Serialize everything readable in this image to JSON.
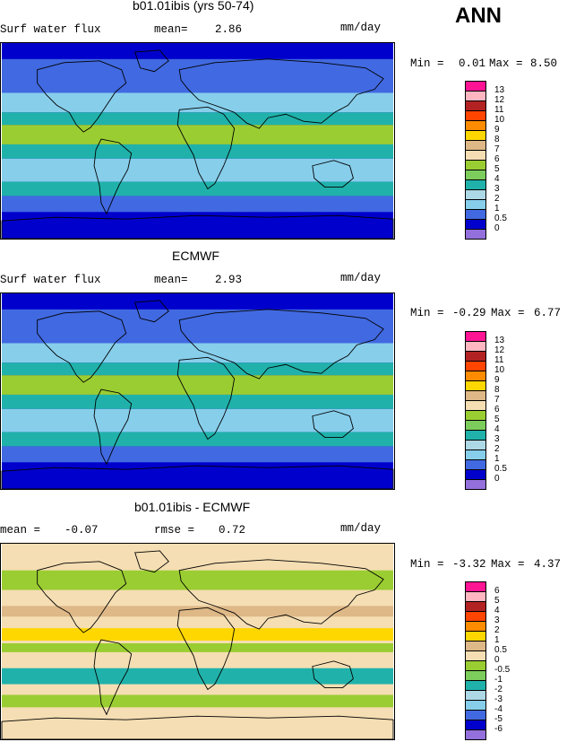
{
  "season_label": "ANN",
  "chart_data": [
    {
      "type": "heatmap",
      "title": "b01.01ibis (yrs 50-74)",
      "left_label": "Surf water flux",
      "stat1_label": "mean=",
      "stat1_value": "2.86",
      "stat2_label": "",
      "stat2_value": "",
      "units": "mm/day",
      "min_label": "Min =",
      "min_value": "0.01",
      "max_label": "Max =",
      "max_value": "8.50",
      "colorbar": {
        "levels": [
          "13",
          "12",
          "11",
          "10",
          "9",
          "8",
          "7",
          "6",
          "5",
          "4",
          "3",
          "2",
          "1",
          "0.5",
          "0"
        ],
        "colors": [
          "#ff1493",
          "#ffb6c1",
          "#b22222",
          "#ff4500",
          "#ff8c00",
          "#ffd700",
          "#deb887",
          "#f5deb3",
          "#9acd32",
          "#7ccd5c",
          "#20b2aa",
          "#add8e6",
          "#87ceeb",
          "#4169e1",
          "#0000cd",
          "#9370db"
        ]
      },
      "field_colors": {
        "ocean_high": "#0000cd",
        "ocean_mid": "#4169e1",
        "tropics": "#9acd32",
        "subtropics": "#87ceeb",
        "band": "#20b2aa"
      }
    },
    {
      "type": "heatmap",
      "title": "ECMWF",
      "left_label": "Surf water flux",
      "stat1_label": "mean=",
      "stat1_value": "2.93",
      "stat2_label": "",
      "stat2_value": "",
      "units": "mm/day",
      "min_label": "Min =",
      "min_value": "-0.29",
      "max_label": "Max =",
      "max_value": "6.77",
      "colorbar": {
        "levels": [
          "13",
          "12",
          "11",
          "10",
          "9",
          "8",
          "7",
          "6",
          "5",
          "4",
          "3",
          "2",
          "1",
          "0.5",
          "0"
        ],
        "colors": [
          "#ff1493",
          "#ffb6c1",
          "#b22222",
          "#ff4500",
          "#ff8c00",
          "#ffd700",
          "#deb887",
          "#f5deb3",
          "#9acd32",
          "#7ccd5c",
          "#20b2aa",
          "#add8e6",
          "#87ceeb",
          "#4169e1",
          "#0000cd",
          "#9370db"
        ]
      },
      "field_colors": {
        "ocean_high": "#0000cd",
        "ocean_mid": "#4169e1",
        "tropics": "#9acd32",
        "subtropics": "#87ceeb",
        "band": "#20b2aa"
      }
    },
    {
      "type": "heatmap",
      "title": "b01.01ibis - ECMWF",
      "left_label": "",
      "stat1_label": "mean =",
      "stat1_value": "-0.07",
      "stat2_label": "rmse =",
      "stat2_value": "0.72",
      "units": "mm/day",
      "min_label": "Min =",
      "min_value": "-3.32",
      "max_label": "Max =",
      "max_value": "4.37",
      "colorbar": {
        "levels": [
          "6",
          "5",
          "4",
          "3",
          "2",
          "1",
          "0.5",
          "0",
          "-0.5",
          "-1",
          "-2",
          "-3",
          "-4",
          "-5",
          "-6"
        ],
        "colors": [
          "#ff1493",
          "#ffb6c1",
          "#b22222",
          "#ff4500",
          "#ff8c00",
          "#ffd700",
          "#deb887",
          "#f5deb3",
          "#9acd32",
          "#7ccd5c",
          "#20b2aa",
          "#add8e6",
          "#87ceeb",
          "#4169e1",
          "#0000cd",
          "#9370db"
        ]
      },
      "field_colors": {
        "ocean_high": "#f5deb3",
        "ocean_mid": "#9acd32",
        "tropics": "#ffd700",
        "subtropics": "#20b2aa",
        "band": "#deb887"
      }
    }
  ]
}
